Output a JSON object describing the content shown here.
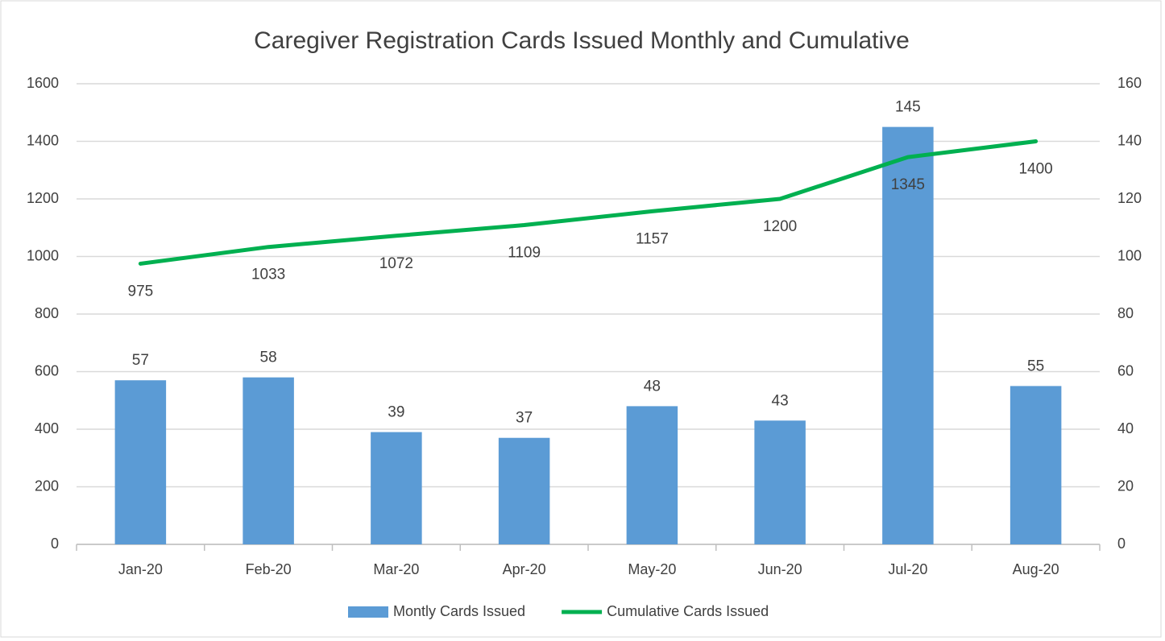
{
  "chart_data": {
    "type": "combo",
    "title": "Caregiver Registration Cards Issued Monthly and Cumulative",
    "categories": [
      "Jan-20",
      "Feb-20",
      "Mar-20",
      "Apr-20",
      "May-20",
      "Jun-20",
      "Jul-20",
      "Aug-20"
    ],
    "series": [
      {
        "name": "Montly Cards Issued",
        "type": "bar",
        "axis": "y2",
        "color": "#5b9bd5",
        "values": [
          57,
          58,
          39,
          37,
          48,
          43,
          145,
          55
        ]
      },
      {
        "name": "Cumulative Cards Issued",
        "type": "line",
        "axis": "y",
        "color": "#00b050",
        "values": [
          975,
          1033,
          1072,
          1109,
          1157,
          1200,
          1345,
          1400
        ]
      }
    ],
    "ylim": [
      0,
      1600
    ],
    "yticks": [
      0,
      200,
      400,
      600,
      800,
      1000,
      1200,
      1400,
      1600
    ],
    "y2lim": [
      0,
      160
    ],
    "y2ticks": [
      0,
      20,
      40,
      60,
      80,
      100,
      120,
      140,
      160
    ],
    "grid": true,
    "legend": "bottom"
  }
}
